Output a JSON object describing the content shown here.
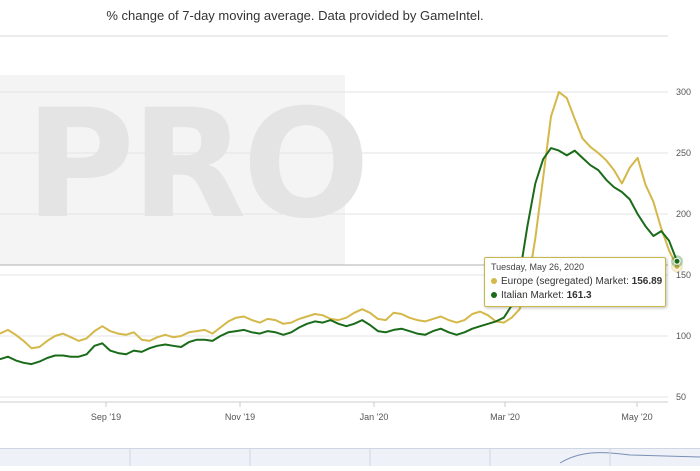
{
  "subtitle": "% change of 7-day moving average. Data provided by GameIntel.",
  "watermark_text": "PRO",
  "tooltip": {
    "date": "Tuesday, May 26, 2020",
    "items": [
      {
        "name": "Europe (segregated) Market",
        "value": "156.89",
        "color": "#d4b84a"
      },
      {
        "name": "Italian Market",
        "value": "161.3",
        "color": "#1a6b1a"
      }
    ]
  },
  "chart_data": {
    "type": "line",
    "title": "% change of 7-day moving average. Data provided by GameIntel.",
    "xlabel": "",
    "ylabel": "",
    "x_ticks": [
      "Sep '19",
      "Nov '19",
      "Jan '20",
      "Mar '20",
      "May '20"
    ],
    "y_ticks": [
      50,
      100,
      150,
      200,
      250,
      300
    ],
    "ylim": [
      50,
      305
    ],
    "x_range": [
      "Jul 2019",
      "May 2020"
    ],
    "grid": true,
    "series": [
      {
        "name": "Europe (segregated) Market",
        "color": "#d4b84a",
        "values": [
          102,
          105,
          101,
          96,
          90,
          91,
          96,
          100,
          102,
          99,
          96,
          98,
          104,
          108,
          104,
          102,
          101,
          103,
          97,
          96,
          99,
          101,
          99,
          100,
          103,
          104,
          105,
          102,
          107,
          112,
          115,
          116,
          113,
          111,
          114,
          113,
          110,
          111,
          114,
          116,
          118,
          117,
          114,
          113,
          115,
          119,
          122,
          119,
          114,
          113,
          119,
          118,
          115,
          113,
          112,
          114,
          116,
          113,
          111,
          113,
          118,
          120,
          117,
          112,
          111,
          115,
          122,
          140,
          180,
          230,
          280,
          300,
          295,
          278,
          262,
          255,
          250,
          244,
          236,
          225,
          238,
          246,
          224,
          210,
          188,
          170,
          156.89
        ]
      },
      {
        "name": "Italian Market",
        "color": "#1a6b1a",
        "values": [
          81,
          83,
          80,
          78,
          77,
          79,
          82,
          84,
          84,
          83,
          83,
          85,
          92,
          94,
          88,
          86,
          85,
          88,
          87,
          90,
          92,
          93,
          92,
          91,
          95,
          97,
          97,
          96,
          100,
          103,
          104,
          105,
          103,
          102,
          104,
          103,
          101,
          103,
          107,
          110,
          112,
          111,
          113,
          110,
          108,
          110,
          113,
          109,
          104,
          103,
          105,
          106,
          104,
          102,
          101,
          104,
          106,
          103,
          101,
          103,
          106,
          108,
          110,
          112,
          115,
          125,
          150,
          190,
          225,
          245,
          254,
          252,
          248,
          252,
          246,
          240,
          236,
          228,
          222,
          218,
          212,
          200,
          190,
          182,
          186,
          178,
          161.3
        ]
      }
    ]
  }
}
